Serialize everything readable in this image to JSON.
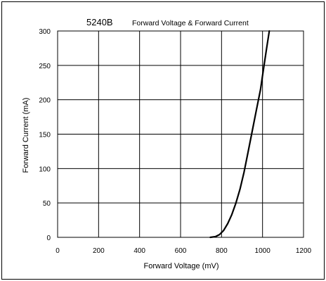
{
  "chart_data": {
    "type": "line",
    "title": "5240B",
    "subtitle": "Forward Voltage & Forward Current",
    "xlabel": "Forward Voltage (mV)",
    "ylabel": "Forward Current (mA)",
    "xlim": [
      0,
      1200
    ],
    "ylim": [
      0,
      300
    ],
    "x_ticks": [
      0,
      200,
      400,
      600,
      800,
      1000,
      1200
    ],
    "y_ticks": [
      0,
      50,
      100,
      150,
      200,
      250,
      300
    ],
    "x_tick_labels": [
      "0",
      "200",
      "400",
      "600",
      "800",
      "1000",
      "1200"
    ],
    "y_tick_labels": [
      "0",
      "50",
      "100",
      "150",
      "200",
      "250",
      "300"
    ],
    "grid": true,
    "series": [
      {
        "x": [
          745,
          770,
          790,
          810,
          830,
          850,
          870,
          890,
          910,
          930,
          950,
          970,
          990,
          1005,
          1020,
          1033
        ],
        "y": [
          0,
          1,
          4,
          10,
          20,
          33,
          50,
          70,
          95,
          125,
          155,
          185,
          215,
          245,
          275,
          300
        ]
      }
    ]
  }
}
